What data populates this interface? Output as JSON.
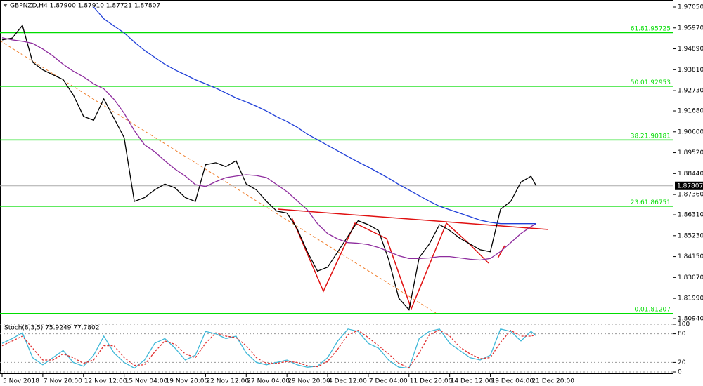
{
  "chart_data": [
    {
      "type": "line",
      "title": "GBPNZD,H4  1.87900 1.87910 1.87721 1.87807",
      "x": [
        0,
        4,
        8,
        12,
        16,
        20,
        24,
        28,
        32,
        36,
        40,
        44,
        48,
        52,
        56,
        60,
        64,
        68,
        72,
        76,
        80,
        84,
        88,
        92,
        96,
        100,
        104,
        108,
        112,
        116,
        120,
        124,
        128,
        132,
        136,
        140,
        144,
        148,
        152,
        156,
        160,
        164,
        168,
        172,
        176,
        180,
        184,
        188,
        192,
        196,
        200,
        204,
        208,
        210
      ],
      "xlim": [
        0,
        264
      ],
      "ylim": [
        1.8087,
        1.9734
      ],
      "yticks": [
        {
          "value": 1.9705,
          "label": "1.97050"
        },
        {
          "value": 1.9597,
          "label": "1.95970"
        },
        {
          "value": 1.9489,
          "label": "1.94890"
        },
        {
          "value": 1.9381,
          "label": "1.93810"
        },
        {
          "value": 1.9273,
          "label": "1.92730"
        },
        {
          "value": 1.9168,
          "label": "1.91680"
        },
        {
          "value": 1.906,
          "label": "1.90600"
        },
        {
          "value": 1.8952,
          "label": "1.89520"
        },
        {
          "value": 1.8844,
          "label": "1.88440"
        },
        {
          "value": 1.8736,
          "label": "1.87360"
        },
        {
          "value": 1.8631,
          "label": "1.86310"
        },
        {
          "value": 1.8523,
          "label": "1.85230"
        },
        {
          "value": 1.8415,
          "label": "1.84150"
        },
        {
          "value": 1.8307,
          "label": "1.83070"
        },
        {
          "value": 1.8199,
          "label": "1.81990"
        },
        {
          "value": 1.8094,
          "label": "1.80940"
        }
      ],
      "series": [
        {
          "color": "#000000",
          "values": [
            1.9535,
            1.9545,
            1.961,
            1.942,
            1.938,
            1.9355,
            1.933,
            1.925,
            1.914,
            1.912,
            1.923,
            1.913,
            1.903,
            1.87,
            1.872,
            1.876,
            1.879,
            1.877,
            1.872,
            1.87,
            1.889,
            1.89,
            1.888,
            1.891,
            1.879,
            1.876,
            1.87,
            1.865,
            1.864,
            1.856,
            1.844,
            1.834,
            1.836,
            1.844,
            1.852,
            1.86,
            1.858,
            1.855,
            1.84,
            1.82,
            1.814,
            1.841,
            1.848,
            1.858,
            1.855,
            1.851,
            1.848,
            1.845,
            1.844,
            1.866,
            1.87,
            1.88,
            1.883,
            1.87807
          ]
        },
        {
          "color": "#8e2c9e",
          "values": [
            1.9546,
            1.9535,
            1.9528,
            1.9517,
            1.9488,
            1.9452,
            1.9409,
            1.9373,
            1.9344,
            1.9308,
            1.9282,
            1.9228,
            1.9156,
            1.9066,
            1.8993,
            1.8957,
            1.891,
            1.8867,
            1.8831,
            1.8787,
            1.8777,
            1.8802,
            1.8823,
            1.8831,
            1.8838,
            1.8834,
            1.8823,
            1.8787,
            1.8751,
            1.8704,
            1.8657,
            1.8585,
            1.8534,
            1.8506,
            1.8487,
            1.8484,
            1.8477,
            1.8462,
            1.8441,
            1.8419,
            1.8405,
            1.8405,
            1.8408,
            1.8415,
            1.8415,
            1.8408,
            1.8401,
            1.8397,
            1.8405,
            1.8441,
            1.8487,
            1.8534,
            1.857,
            1.8585
          ]
        },
        {
          "color": "#1f3fd8",
          "values": [
            null,
            null,
            null,
            null,
            null,
            null,
            null,
            null,
            null,
            1.9705,
            1.9644,
            1.9607,
            1.9571,
            1.9524,
            1.9481,
            1.9445,
            1.9409,
            1.938,
            1.9355,
            1.9329,
            1.9308,
            1.9286,
            1.9261,
            1.9235,
            1.9214,
            1.9192,
            1.9167,
            1.9138,
            1.9113,
            1.9084,
            1.9048,
            1.9019,
            1.899,
            1.8961,
            1.8932,
            1.8904,
            1.8878,
            1.8849,
            1.882,
            1.8788,
            1.8759,
            1.873,
            1.8701,
            1.8675,
            1.8657,
            1.8639,
            1.8621,
            1.8603,
            1.8592,
            1.8585,
            1.8585,
            1.8585,
            1.8585,
            1.8585
          ]
        }
      ],
      "last_price": 1.87807,
      "fib_color": "#00dd00",
      "fib_levels": [
        {
          "level": "61.8",
          "value": 1.95725
        },
        {
          "level": "50.0",
          "value": 1.92953
        },
        {
          "level": "38.2",
          "value": 1.90181
        },
        {
          "level": "23.6",
          "value": 1.86751
        },
        {
          "level": "0.0",
          "value": 1.81207
        }
      ]
    },
    {
      "type": "line",
      "title": "Stoch(8,3,5) 75.9249 77.7802",
      "x": [
        0,
        4,
        8,
        12,
        16,
        20,
        24,
        28,
        32,
        36,
        40,
        44,
        48,
        52,
        56,
        60,
        64,
        68,
        72,
        76,
        80,
        84,
        88,
        92,
        96,
        100,
        104,
        108,
        112,
        116,
        120,
        124,
        128,
        132,
        136,
        140,
        144,
        148,
        152,
        156,
        160,
        164,
        168,
        172,
        176,
        180,
        184,
        188,
        192,
        196,
        200,
        204,
        208,
        210
      ],
      "xlim": [
        0,
        264
      ],
      "ylim": [
        0,
        100
      ],
      "yticks": [
        0,
        20,
        80,
        100
      ],
      "grid": true,
      "xticks": [
        {
          "value": 0,
          "label": "5 Nov 2018"
        },
        {
          "value": 16,
          "label": "7 Nov 20:00"
        },
        {
          "value": 32,
          "label": "12 Nov 12:00"
        },
        {
          "value": 48,
          "label": "15 Nov 04:00"
        },
        {
          "value": 64,
          "label": "19 Nov 20:00"
        },
        {
          "value": 80,
          "label": "22 Nov 12:00"
        },
        {
          "value": 96,
          "label": "27 Nov 04:00"
        },
        {
          "value": 112,
          "label": "29 Nov 20:00"
        },
        {
          "value": 128,
          "label": "4 Dec 12:00"
        },
        {
          "value": 144,
          "label": "7 Dec 04:00"
        },
        {
          "value": 160,
          "label": "11 Dec 20:00"
        },
        {
          "value": 176,
          "label": "14 Dec 12:00"
        },
        {
          "value": 192,
          "label": "19 Dec 04:00"
        },
        {
          "value": 208,
          "label": "21 Dec 20:00"
        }
      ],
      "series": [
        {
          "color": "#3fb8d8",
          "values": [
            60,
            70,
            82,
            30,
            15,
            30,
            45,
            20,
            12,
            35,
            75,
            40,
            20,
            8,
            25,
            60,
            70,
            50,
            25,
            35,
            85,
            80,
            70,
            75,
            40,
            20,
            15,
            20,
            25,
            15,
            10,
            12,
            30,
            65,
            90,
            85,
            60,
            50,
            25,
            10,
            8,
            70,
            85,
            90,
            60,
            45,
            30,
            25,
            35,
            90,
            85,
            65,
            85,
            75.9249
          ]
        },
        {
          "color": "#e03030",
          "dash": true,
          "values": [
            55,
            65,
            75,
            50,
            25,
            25,
            38,
            30,
            18,
            25,
            55,
            55,
            30,
            14,
            15,
            42,
            65,
            58,
            38,
            30,
            60,
            82,
            75,
            72,
            55,
            30,
            18,
            18,
            22,
            20,
            13,
            11,
            22,
            48,
            78,
            87,
            72,
            55,
            38,
            18,
            9,
            40,
            78,
            88,
            75,
            52,
            38,
            28,
            30,
            62,
            87,
            75,
            75,
            77.7802
          ]
        }
      ]
    }
  ]
}
